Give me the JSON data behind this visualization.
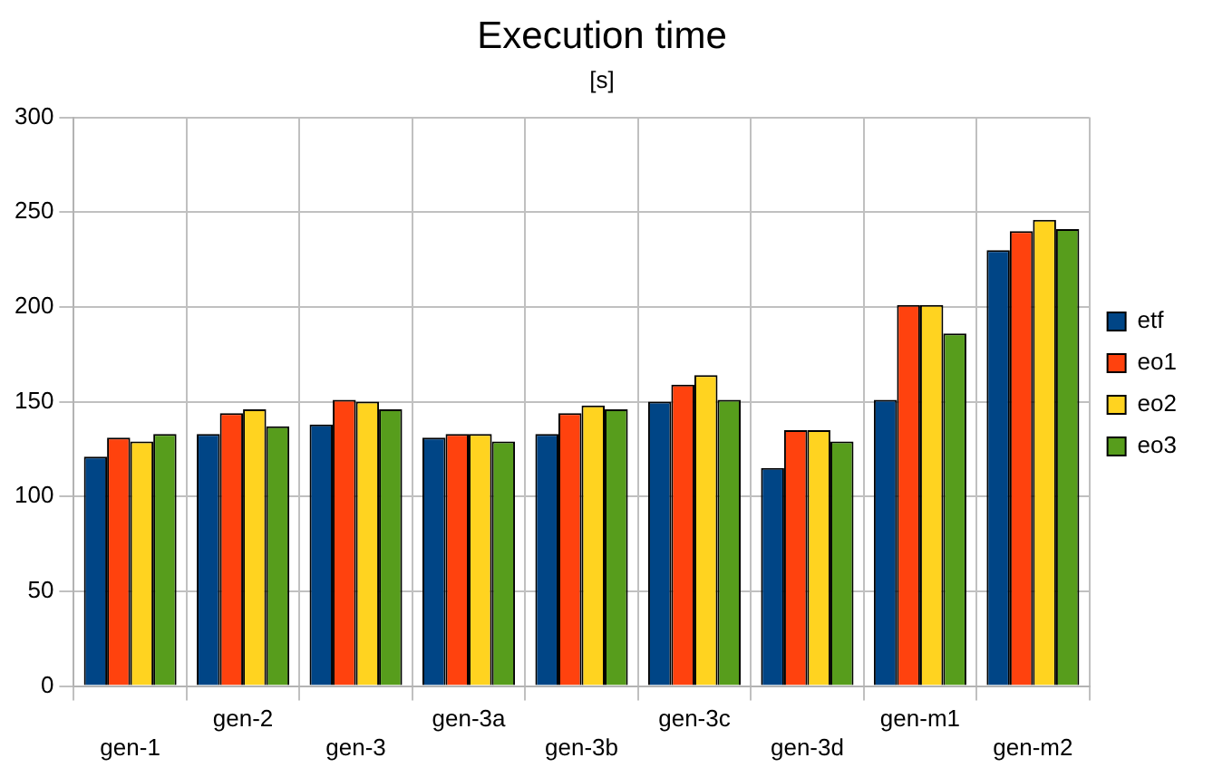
{
  "chart_data": {
    "type": "bar",
    "title": "Execution time",
    "subtitle": "[s]",
    "categories": [
      "gen-1",
      "gen-2",
      "gen-3",
      "gen-3a",
      "gen-3b",
      "gen-3c",
      "gen-3d",
      "gen-m1",
      "gen-m2"
    ],
    "series": [
      {
        "name": "etf",
        "color": "#004586",
        "values": [
          121,
          133,
          138,
          131,
          133,
          150,
          115,
          151,
          230
        ]
      },
      {
        "name": "eo1",
        "color": "#ff420e",
        "values": [
          131,
          144,
          151,
          133,
          144,
          159,
          135,
          201,
          240
        ]
      },
      {
        "name": "eo2",
        "color": "#ffd320",
        "values": [
          129,
          146,
          150,
          133,
          148,
          164,
          135,
          201,
          246
        ]
      },
      {
        "name": "eo3",
        "color": "#579d1c",
        "values": [
          133,
          137,
          146,
          129,
          146,
          151,
          129,
          186,
          241
        ]
      }
    ],
    "ylim": [
      0,
      300
    ],
    "yticks": [
      0,
      50,
      100,
      150,
      200,
      250,
      300
    ],
    "grid": true,
    "legend": "right"
  }
}
